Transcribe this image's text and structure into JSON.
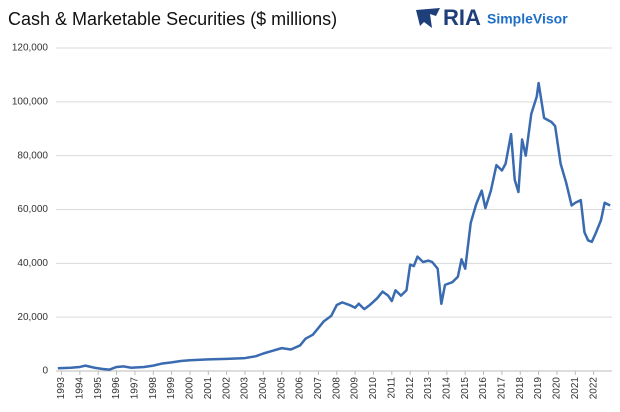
{
  "chart_data": {
    "type": "line",
    "title": "Cash & Marketable Securities ($ millions)",
    "x": [
      1992.8,
      1993.5,
      1994.0,
      1994.3,
      1994.8,
      1995.2,
      1995.6,
      1996.0,
      1996.4,
      1996.8,
      1997.5,
      1998.0,
      1998.5,
      1999.0,
      1999.5,
      2000.0,
      2001.0,
      2002.0,
      2003.0,
      2003.6,
      2004.0,
      2004.5,
      2005.0,
      2005.5,
      2006.0,
      2006.3,
      2006.7,
      2007.0,
      2007.3,
      2007.7,
      2008.0,
      2008.3,
      2008.7,
      2009.0,
      2009.2,
      2009.5,
      2009.8,
      2010.2,
      2010.5,
      2010.8,
      2011.0,
      2011.2,
      2011.5,
      2011.8,
      2012.0,
      2012.2,
      2012.4,
      2012.7,
      2013.0,
      2013.2,
      2013.5,
      2013.7,
      2013.9,
      2014.3,
      2014.6,
      2014.8,
      2015.0,
      2015.3,
      2015.6,
      2015.9,
      2016.1,
      2016.4,
      2016.7,
      2017.0,
      2017.2,
      2017.5,
      2017.7,
      2017.9,
      2018.1,
      2018.3,
      2018.6,
      2018.9,
      2019.0,
      2019.3,
      2019.7,
      2019.9,
      2020.2,
      2020.5,
      2020.8,
      2021.0,
      2021.3,
      2021.5,
      2021.7,
      2021.9,
      2022.1,
      2022.4,
      2022.6,
      2022.9
    ],
    "series": [
      {
        "color": "#3a6bb0",
        "values": [
          1000,
          1200,
          1500,
          2000,
          1200,
          800,
          500,
          1500,
          1700,
          1200,
          1500,
          2000,
          2800,
          3200,
          3700,
          4000,
          4300,
          4500,
          4800,
          5500,
          6500,
          7500,
          8500,
          8000,
          9500,
          12000,
          13500,
          16000,
          18500,
          20500,
          24500,
          25500,
          24500,
          23500,
          25000,
          23000,
          24500,
          27000,
          29500,
          28000,
          26000,
          30000,
          28000,
          30000,
          39500,
          39000,
          42500,
          40500,
          41000,
          40500,
          38000,
          25000,
          32000,
          33000,
          35000,
          41500,
          38000,
          55000,
          62000,
          67000,
          60500,
          67000,
          76500,
          74500,
          77000,
          88000,
          71000,
          66500,
          86000,
          80000,
          95500,
          102000,
          107000,
          94000,
          92500,
          91000,
          77000,
          70000,
          61500,
          62500,
          63500,
          51500,
          48500,
          48000,
          51000,
          56000,
          62500,
          61500
        ]
      }
    ],
    "xlim": [
      1992.7,
      2023.0
    ],
    "xticks": [
      1993,
      1994,
      1995,
      1996,
      1997,
      1998,
      1999,
      2000,
      2001,
      2002,
      2003,
      2004,
      2005,
      2006,
      2007,
      2008,
      2009,
      2010,
      2011,
      2012,
      2013,
      2014,
      2015,
      2016,
      2017,
      2018,
      2019,
      2020,
      2021,
      2022
    ],
    "ylim": [
      0,
      120000
    ],
    "yticks": [
      0,
      {
        "value": 20000,
        "label": "20,000"
      },
      {
        "value": 40000,
        "label": "40,000"
      },
      {
        "value": 60000,
        "label": "60,000"
      },
      {
        "value": 80000,
        "label": "80,000"
      },
      {
        "value": 100000,
        "label": "100,000"
      },
      {
        "value": 120000,
        "label": "120,000"
      }
    ],
    "grid": true
  },
  "logo": {
    "name": "RIA",
    "product": "SimpleVisor"
  }
}
